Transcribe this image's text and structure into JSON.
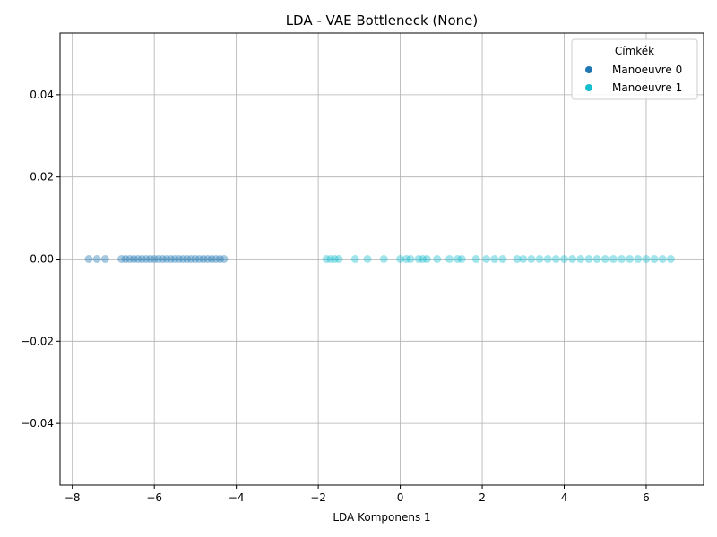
{
  "chart_data": {
    "type": "scatter",
    "title": "LDA - VAE Bottleneck (None)",
    "xlabel": "LDA Komponens 1",
    "ylabel": "",
    "xlim": [
      -8.3,
      7.4
    ],
    "ylim": [
      -0.055,
      0.055
    ],
    "x_ticks": [
      -8,
      -6,
      -4,
      -2,
      0,
      2,
      4,
      6
    ],
    "x_tick_labels": [
      "−8",
      "−6",
      "−4",
      "−2",
      "0",
      "2",
      "4",
      "6"
    ],
    "y_ticks": [
      -0.04,
      -0.02,
      0.0,
      0.02,
      0.04
    ],
    "y_tick_labels": [
      "−0.04",
      "−0.02",
      "0.00",
      "0.02",
      "0.04"
    ],
    "grid": true,
    "legend": {
      "title": "Címkék",
      "placement": "top-right"
    },
    "series": [
      {
        "name": "Manoeuvre 0",
        "color": "#1f77b4",
        "x": [
          -7.6,
          -7.4,
          -7.2,
          -6.8,
          -6.7,
          -6.6,
          -6.5,
          -6.4,
          -6.3,
          -6.2,
          -6.1,
          -6.0,
          -5.9,
          -5.8,
          -5.7,
          -5.6,
          -5.5,
          -5.4,
          -5.3,
          -5.2,
          -5.1,
          -5.0,
          -4.9,
          -4.8,
          -4.7,
          -4.6,
          -4.5,
          -4.4,
          -4.3
        ],
        "y": [
          0,
          0,
          0,
          0,
          0,
          0,
          0,
          0,
          0,
          0,
          0,
          0,
          0,
          0,
          0,
          0,
          0,
          0,
          0,
          0,
          0,
          0,
          0,
          0,
          0,
          0,
          0,
          0,
          0
        ]
      },
      {
        "name": "Manoeuvre 1",
        "color": "#17becf",
        "x": [
          -1.8,
          -1.7,
          -1.6,
          -1.5,
          -1.1,
          -0.8,
          -0.4,
          0.0,
          0.15,
          0.25,
          0.45,
          0.55,
          0.65,
          0.9,
          1.2,
          1.4,
          1.5,
          1.85,
          2.1,
          2.3,
          2.5,
          2.85,
          3.0,
          3.2,
          3.4,
          3.6,
          3.8,
          4.0,
          4.2,
          4.4,
          4.6,
          4.8,
          5.0,
          5.2,
          5.4,
          5.6,
          5.8,
          6.0,
          6.2,
          6.4,
          6.6
        ],
        "y": [
          0,
          0,
          0,
          0,
          0,
          0,
          0,
          0,
          0,
          0,
          0,
          0,
          0,
          0,
          0,
          0,
          0,
          0,
          0,
          0,
          0,
          0,
          0,
          0,
          0,
          0,
          0,
          0,
          0,
          0,
          0,
          0,
          0,
          0,
          0,
          0,
          0,
          0,
          0,
          0,
          0
        ]
      }
    ]
  }
}
